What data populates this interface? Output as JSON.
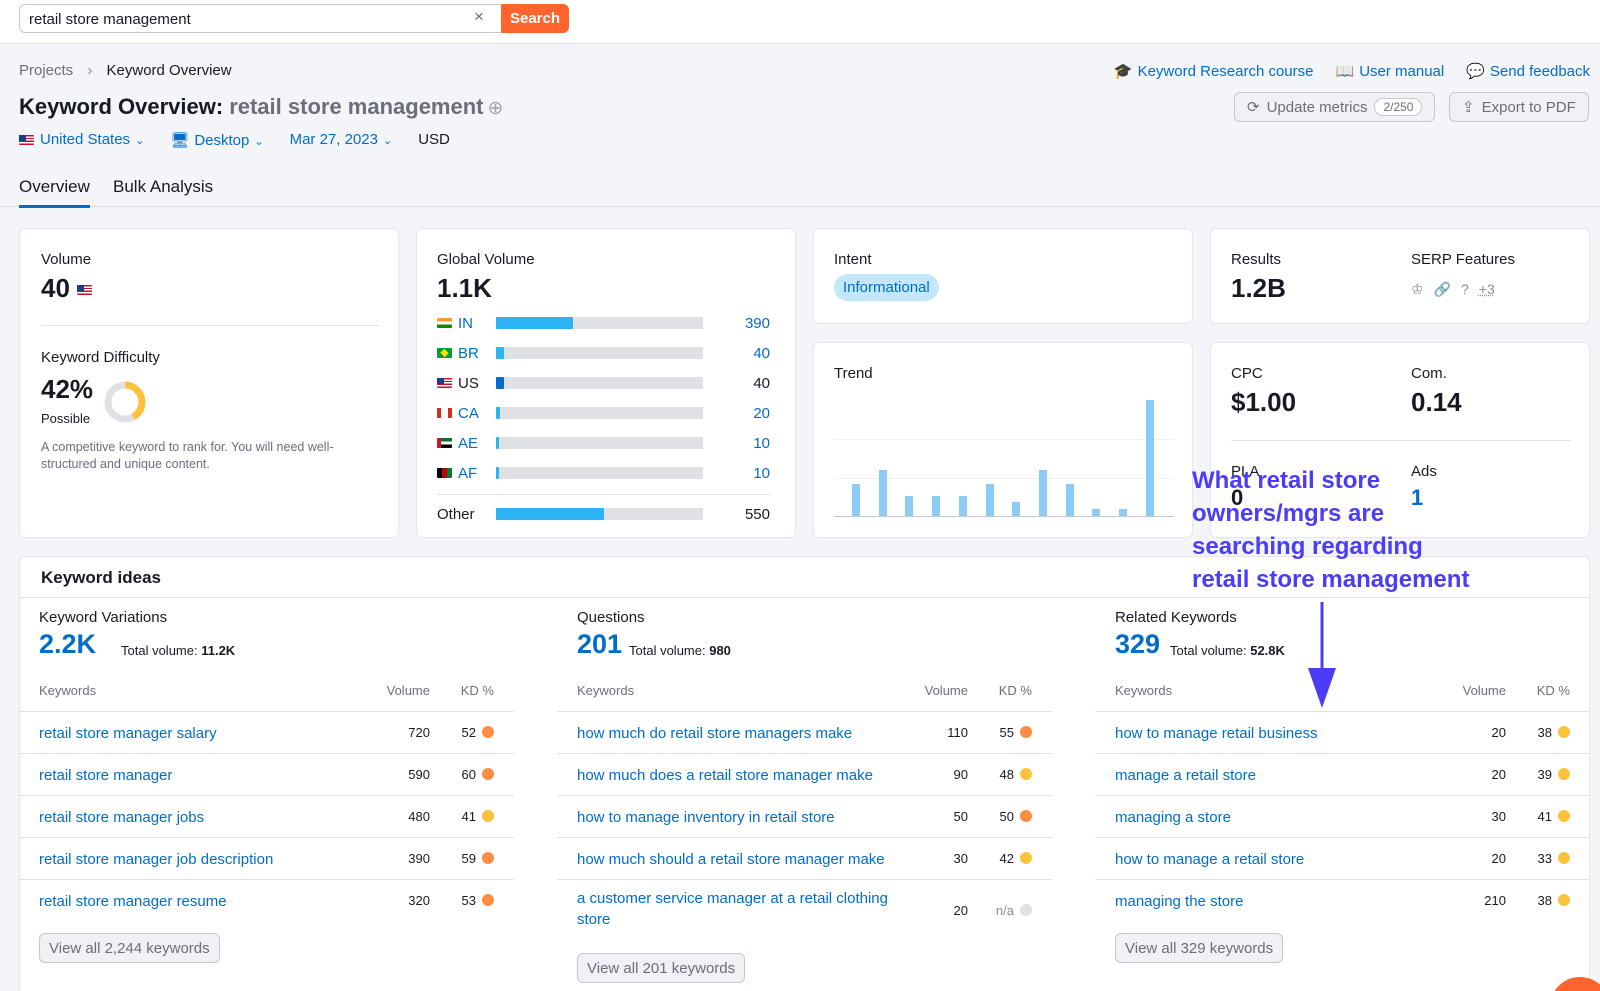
{
  "search": {
    "value": "retail store management",
    "clear": "×",
    "button": "Search"
  },
  "breadcrumb": {
    "projects": "Projects",
    "sep": "›",
    "current": "Keyword Overview"
  },
  "top_links": {
    "course": "Keyword Research course",
    "manual": "User manual",
    "feedback": "Send feedback"
  },
  "title": {
    "prefix": "Keyword Overview:",
    "keyword": "retail store management",
    "plus": "⊕"
  },
  "actions": {
    "update": "Update metrics",
    "update_count": "2/250",
    "export": "Export to PDF"
  },
  "filters": {
    "country": "United States",
    "device": "Desktop",
    "date": "Mar 27, 2023",
    "currency": "USD"
  },
  "tabs": {
    "overview": "Overview",
    "bulk": "Bulk Analysis"
  },
  "volume": {
    "label": "Volume",
    "value": "40"
  },
  "kd": {
    "label": "Keyword Difficulty",
    "value": "42%",
    "level": "Possible",
    "level_percent": 42,
    "desc": "A competitive keyword to rank for. You will need well-structured and unique content."
  },
  "global_volume": {
    "label": "Global Volume",
    "value": "1.1K",
    "rows": [
      {
        "code": "IN",
        "value": "390",
        "share": 0.37
      },
      {
        "code": "BR",
        "value": "40",
        "share": 0.04
      },
      {
        "code": "US",
        "value": "40",
        "share": 0.04
      },
      {
        "code": "CA",
        "value": "20",
        "share": 0.02
      },
      {
        "code": "AE",
        "value": "10",
        "share": 0.01
      },
      {
        "code": "AF",
        "value": "10",
        "share": 0.01
      }
    ],
    "other": {
      "label": "Other",
      "value": "550",
      "share": 0.52
    }
  },
  "intent": {
    "label": "Intent",
    "value": "Informational"
  },
  "trend": {
    "label": "Trend",
    "values": [
      0.28,
      0.4,
      0.17,
      0.17,
      0.17,
      0.28,
      0.12,
      0.4,
      0.28,
      0.06,
      0.06,
      1.0
    ]
  },
  "results": {
    "label": "Results",
    "value": "1.2B",
    "serp_label": "SERP Features",
    "serp_more": "+3"
  },
  "cpc": {
    "label": "CPC",
    "value": "$1.00",
    "com_label": "Com.",
    "com_value": "0.14",
    "pla_label": "PLA",
    "pla_value": "0",
    "ads_label": "Ads",
    "ads_value": "1"
  },
  "ideas": {
    "title": "Keyword ideas",
    "columns_header": {
      "keywords": "Keywords",
      "volume": "Volume",
      "kd": "KD %"
    },
    "total_volume_label": "Total volume:",
    "variations": {
      "title": "Keyword Variations",
      "count": "2.2K",
      "total": "11.2K",
      "rows": [
        {
          "kw": "retail store manager salary",
          "vol": "720",
          "kd": "52",
          "level": "or"
        },
        {
          "kw": "retail store manager",
          "vol": "590",
          "kd": "60",
          "level": "or"
        },
        {
          "kw": "retail store manager jobs",
          "vol": "480",
          "kd": "41",
          "level": "ye"
        },
        {
          "kw": "retail store manager job description",
          "vol": "390",
          "kd": "59",
          "level": "or"
        },
        {
          "kw": "retail store manager resume",
          "vol": "320",
          "kd": "53",
          "level": "or"
        }
      ],
      "view_all": "View all 2,244 keywords"
    },
    "questions": {
      "title": "Questions",
      "count": "201",
      "total": "980",
      "rows": [
        {
          "kw": "how much do retail store managers make",
          "vol": "110",
          "kd": "55",
          "level": "or"
        },
        {
          "kw": "how much does a retail store manager make",
          "vol": "90",
          "kd": "48",
          "level": "ye"
        },
        {
          "kw": "how to manage inventory in retail store",
          "vol": "50",
          "kd": "50",
          "level": "or"
        },
        {
          "kw": "how much should a retail store manager make",
          "vol": "30",
          "kd": "42",
          "level": "ye"
        },
        {
          "kw": "a customer service manager at a retail clothing store",
          "vol": "20",
          "kd": "n/a",
          "level": "gr"
        }
      ],
      "view_all": "View all 201 keywords"
    },
    "related": {
      "title": "Related Keywords",
      "count": "329",
      "total": "52.8K",
      "rows": [
        {
          "kw": "how to manage retail business",
          "vol": "20",
          "kd": "38",
          "level": "ye"
        },
        {
          "kw": "manage a retail store",
          "vol": "20",
          "kd": "39",
          "level": "ye"
        },
        {
          "kw": "managing a store",
          "vol": "30",
          "kd": "41",
          "level": "ye"
        },
        {
          "kw": "how to manage a retail store",
          "vol": "20",
          "kd": "33",
          "level": "ye"
        },
        {
          "kw": "managing the store",
          "vol": "210",
          "kd": "38",
          "level": "ye"
        }
      ],
      "view_all": "View all 329 keywords"
    }
  },
  "annotation": {
    "line1": "What retail store",
    "line2": "owners/mgrs are",
    "line3": "searching regarding",
    "line4": "retail store management"
  },
  "colors": {
    "accent": "#006dca",
    "search": "#ff642d",
    "annotation": "#4b3cf5",
    "bar": "#2bb3f3"
  }
}
